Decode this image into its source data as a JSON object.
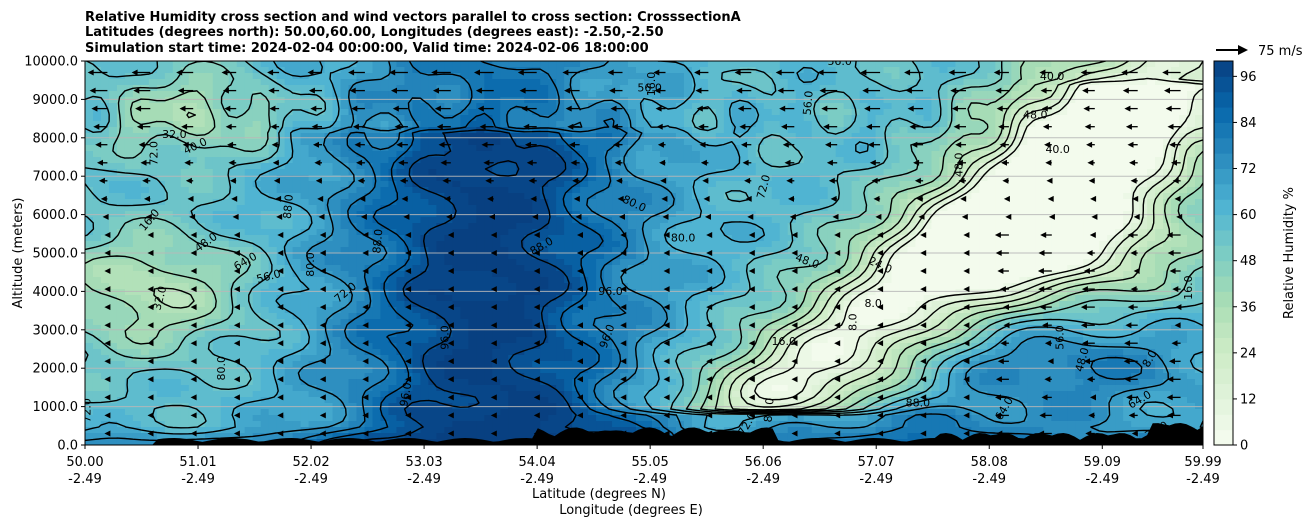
{
  "chart_data": {
    "type": "heatmap",
    "title_lines": [
      "Relative Humidity cross section and wind vectors parallel to cross section: CrosssectionA",
      "Latitudes (degrees north): 50.00,60.00, Longitudes (degrees east): -2.50,-2.50",
      "Simulation start time: 2024-02-04 00:00:00, Valid time: 2024-02-06 18:00:00"
    ],
    "ylabel": "Altitude (meters)",
    "xlabel_1": "Latitude (degrees N)",
    "xlabel_2": "Longitude (degrees E)",
    "ylim": [
      0,
      10000
    ],
    "yticks": [
      "0.0",
      "1000.0",
      "2000.0",
      "3000.0",
      "4000.0",
      "5000.0",
      "6000.0",
      "7000.0",
      "8000.0",
      "9000.0",
      "10000.0"
    ],
    "xticks_lat": [
      "50.00",
      "51.01",
      "52.02",
      "53.03",
      "54.04",
      "55.05",
      "56.06",
      "57.07",
      "58.08",
      "59.09",
      "59.99"
    ],
    "xticks_lon": [
      "-2.49",
      "-2.49",
      "-2.49",
      "-2.49",
      "-2.49",
      "-2.49",
      "-2.49",
      "-2.49",
      "-2.49",
      "-2.49",
      "-2.49"
    ],
    "grid": "horizontal",
    "colorbar": {
      "label": "Relative Humidity %",
      "ticks": [
        "0",
        "12",
        "24",
        "36",
        "48",
        "60",
        "72",
        "84",
        "96"
      ],
      "range": [
        0,
        100
      ],
      "colormap": "GnBu",
      "colors": [
        "#f7fcf0",
        "#e0f3db",
        "#ccebc5",
        "#a8ddb5",
        "#7bccc4",
        "#4eb3d3",
        "#2b8cbe",
        "#0868ac",
        "#084081"
      ]
    },
    "quiver_key": {
      "label": "75 m/s"
    },
    "contour_labels": [
      "8.0",
      "16.0",
      "24.0",
      "32.0",
      "40.0",
      "48.0",
      "56.0",
      "64.0",
      "72.0",
      "80.0",
      "88.0",
      "96.0"
    ],
    "terrain_color": "#000000"
  }
}
